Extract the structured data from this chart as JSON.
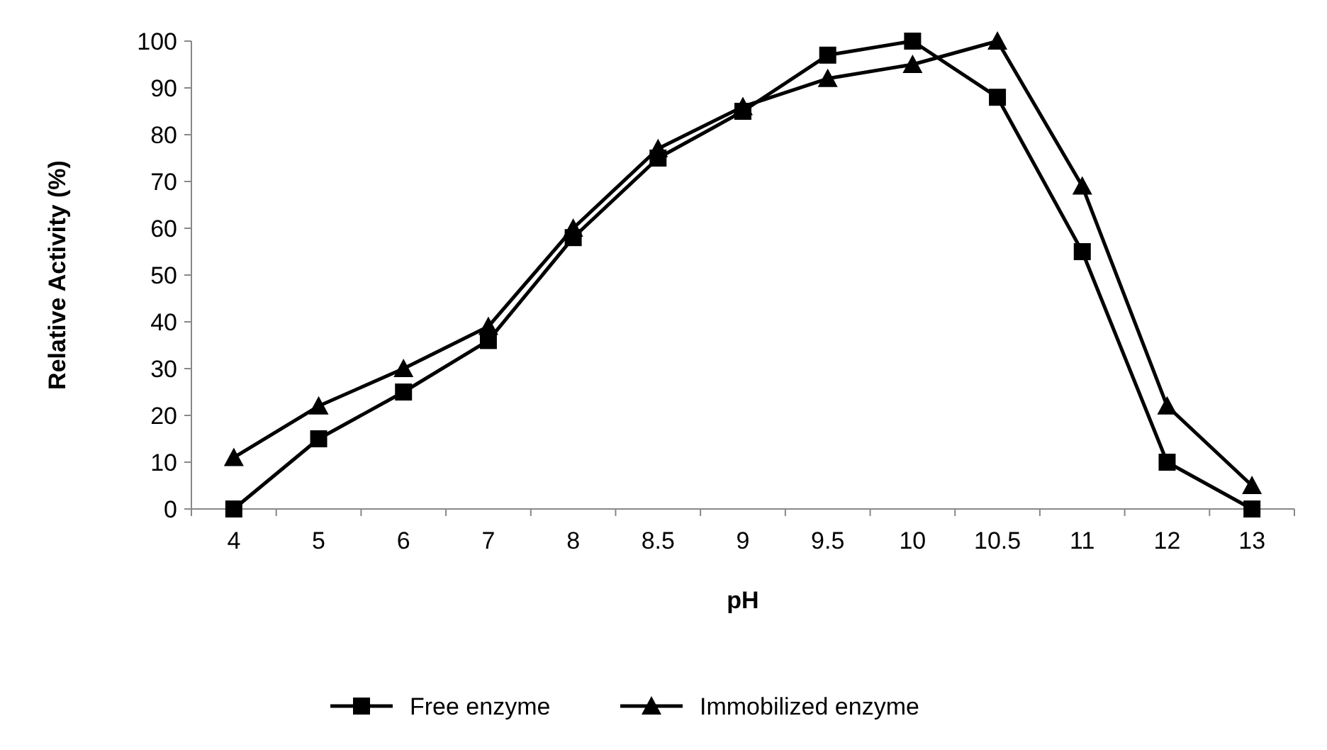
{
  "chart_data": {
    "type": "line",
    "xlabel": "pH",
    "ylabel": "Relative Activity (%)",
    "categories": [
      "4",
      "5",
      "6",
      "7",
      "8",
      "8.5",
      "9",
      "9.5",
      "10",
      "10.5",
      "11",
      "12",
      "13"
    ],
    "series": [
      {
        "name": "Free enzyme",
        "color": "#000000",
        "marker": "square",
        "values": [
          0,
          15,
          25,
          36,
          58,
          75,
          85,
          97,
          100,
          88,
          55,
          10,
          0
        ]
      },
      {
        "name": "Immobilized enzyme",
        "color": "#000000",
        "marker": "triangle",
        "values": [
          11,
          22,
          30,
          39,
          60,
          77,
          86,
          92,
          95,
          100,
          69,
          22,
          5
        ]
      }
    ],
    "ylim": [
      0,
      100
    ],
    "yticks": [
      0,
      10,
      20,
      30,
      40,
      50,
      60,
      70,
      80,
      90,
      100
    ],
    "legend": "bottom",
    "grid": false,
    "line_style": "solid"
  }
}
